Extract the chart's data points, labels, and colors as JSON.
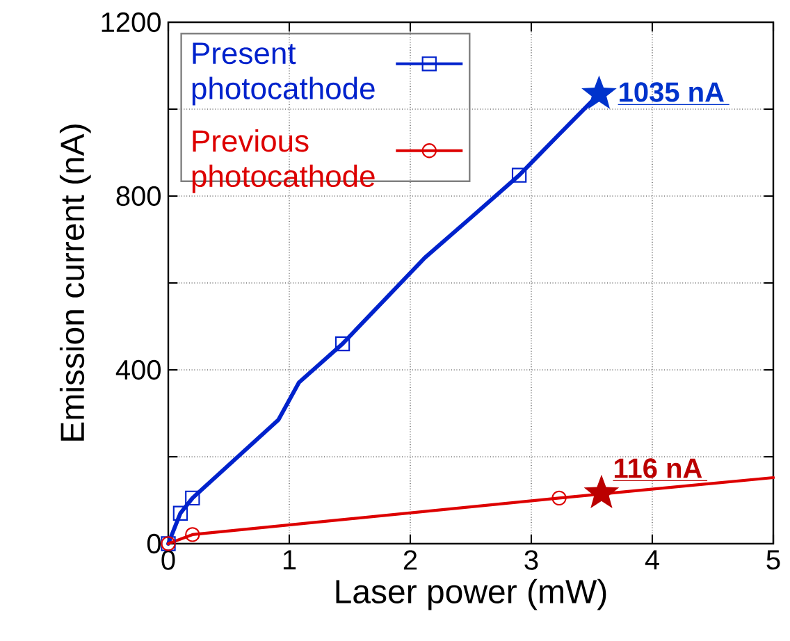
{
  "chart_data": {
    "type": "line",
    "xlabel": "Laser power (mW)",
    "ylabel": "Emission current (nA)",
    "xlim": [
      0,
      5
    ],
    "ylim": [
      0,
      1200
    ],
    "xticks": [
      0,
      1,
      2,
      3,
      4,
      5
    ],
    "yticks": [
      0,
      {
        "value": 200,
        "label": null
      },
      400,
      {
        "value": 600,
        "label": null
      },
      800,
      {
        "value": 1000,
        "label": null
      },
      1200
    ],
    "grid": true,
    "legend": "top left",
    "series": [
      {
        "color": "#0022cc",
        "x": [
          0,
          0.1,
          0.2,
          0.91,
          1.08,
          1.44,
          2.12,
          2.52,
          2.9,
          3.23,
          3.56
        ],
        "values": [
          0,
          70,
          105,
          285,
          371,
          460,
          658,
          755,
          848,
          942,
          1035
        ]
      },
      {
        "type": "scatter",
        "name": "Present photocathode",
        "marker": "square",
        "color": "#0022cc",
        "x": [
          0,
          0.1,
          0.2,
          1.44,
          2.9
        ],
        "values": [
          0,
          70,
          105,
          460,
          848
        ]
      },
      {
        "type": "scatter",
        "marker": "star",
        "color": "#0033cc",
        "x": [
          3.56
        ],
        "values": [
          1035
        ]
      },
      {
        "color": "#dd0000",
        "x": [
          0,
          0.2,
          3.23,
          5
        ],
        "values": [
          0,
          21,
          105,
          152
        ]
      },
      {
        "type": "scatter",
        "name": "Previous photocathode",
        "marker": "circle",
        "color": "#dd0000",
        "x": [
          0,
          0.2,
          3.23
        ],
        "values": [
          0,
          21,
          105
        ]
      },
      {
        "type": "scatter",
        "marker": "star",
        "color": "#bb0000",
        "x": [
          3.58
        ],
        "values": [
          116
        ]
      }
    ],
    "annotations": [
      {
        "text": "**1035 nA**",
        "x": 3.56,
        "y": 1035
      },
      {
        "text": "**116 nA**",
        "x": 3.58,
        "y": 116
      }
    ]
  }
}
